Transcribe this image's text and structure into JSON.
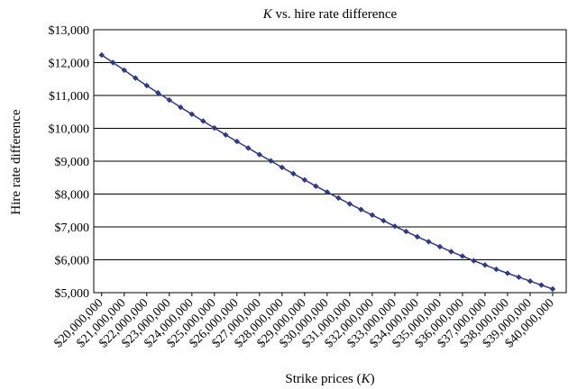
{
  "chart_data": {
    "type": "line",
    "title": {
      "main": "K",
      "rest": " vs. hire rate difference"
    },
    "xlabel": {
      "main": "Strike prices (",
      "italic": "K",
      "end": ")"
    },
    "ylabel": "Hire rate difference",
    "ylim": [
      5000,
      13000
    ],
    "yticks": [
      5000,
      6000,
      7000,
      8000,
      9000,
      10000,
      11000,
      12000,
      13000
    ],
    "ytick_labels": [
      "$5,000",
      "$6,000",
      "$7,000",
      "$8,000",
      "$9,000",
      "$10,000",
      "$11,000",
      "$12,000",
      "$13,000"
    ],
    "xlim": [
      19650000,
      40600000
    ],
    "xticks": [
      20000000,
      21000000,
      22000000,
      23000000,
      24000000,
      25000000,
      26000000,
      27000000,
      28000000,
      29000000,
      30000000,
      31000000,
      32000000,
      33000000,
      34000000,
      35000000,
      36000000,
      37000000,
      38000000,
      39000000,
      40000000
    ],
    "xtick_labels": [
      "$20,000,000",
      "$21,000,000",
      "$22,000,000",
      "$23,000,000",
      "$24,000,000",
      "$25,000,000",
      "$26,000,000",
      "$27,000,000",
      "$28,000,000",
      "$29,000,000",
      "$30,000,000",
      "$31,000,000",
      "$32,000,000",
      "$33,000,000",
      "$34,000,000",
      "$35,000,000",
      "$36,000,000",
      "$37,000,000",
      "$38,000,000",
      "$39,000,000",
      "$40,000,000"
    ],
    "grid": "horizontal",
    "color": "#2e3a87",
    "x": [
      20000000,
      20500000,
      21000000,
      21500000,
      22000000,
      22500000,
      23000000,
      23500000,
      24000000,
      24500000,
      25000000,
      25500000,
      26000000,
      26500000,
      27000000,
      27500000,
      28000000,
      28500000,
      29000000,
      29500000,
      30000000,
      30500000,
      31000000,
      31500000,
      32000000,
      32500000,
      33000000,
      33500000,
      34000000,
      34500000,
      35000000,
      35500000,
      36000000,
      36500000,
      37000000,
      37500000,
      38000000,
      38500000,
      39000000,
      39500000,
      40000000
    ],
    "values": [
      12230,
      12000,
      11770,
      11530,
      11300,
      11080,
      10860,
      10640,
      10430,
      10220,
      10010,
      9800,
      9600,
      9400,
      9200,
      9010,
      8810,
      8620,
      8430,
      8240,
      8060,
      7880,
      7700,
      7530,
      7360,
      7190,
      7020,
      6860,
      6700,
      6550,
      6400,
      6250,
      6110,
      5970,
      5840,
      5710,
      5590,
      5470,
      5350,
      5230,
      5110
    ]
  }
}
